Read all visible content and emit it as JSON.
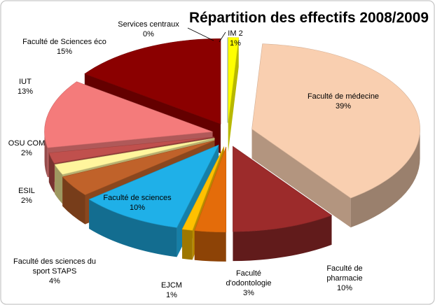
{
  "chart_data": {
    "type": "pie3d",
    "title": "Répartition des effectifs 2008/2009",
    "categories": [
      "IM 2",
      "Faculté de médecine",
      "Faculté de pharmacie",
      "Faculté d'odontologie",
      "EJCM",
      "Faculté de sciences",
      "Faculté des sciences du sport STAPS",
      "ESIL",
      "OSU COM",
      "IUT",
      "Faculté de Sciences éco",
      "Services centraux"
    ],
    "values": [
      1,
      39,
      10,
      3,
      1,
      10,
      4,
      2,
      2,
      13,
      15,
      0
    ],
    "value_labels": [
      "1%",
      "39%",
      "10%",
      "3%",
      "1%",
      "10%",
      "4%",
      "2%",
      "2%",
      "13%",
      "15%",
      "0%"
    ],
    "colors": [
      "#ffff00",
      "#f9cfb0",
      "#9c2b2b",
      "#e46c0a",
      "#ffc000",
      "#1fb0e8",
      "#c0622a",
      "#fff59d",
      "#c0504d",
      "#f47b7b",
      "#8b0000",
      "#4f81bd"
    ]
  }
}
